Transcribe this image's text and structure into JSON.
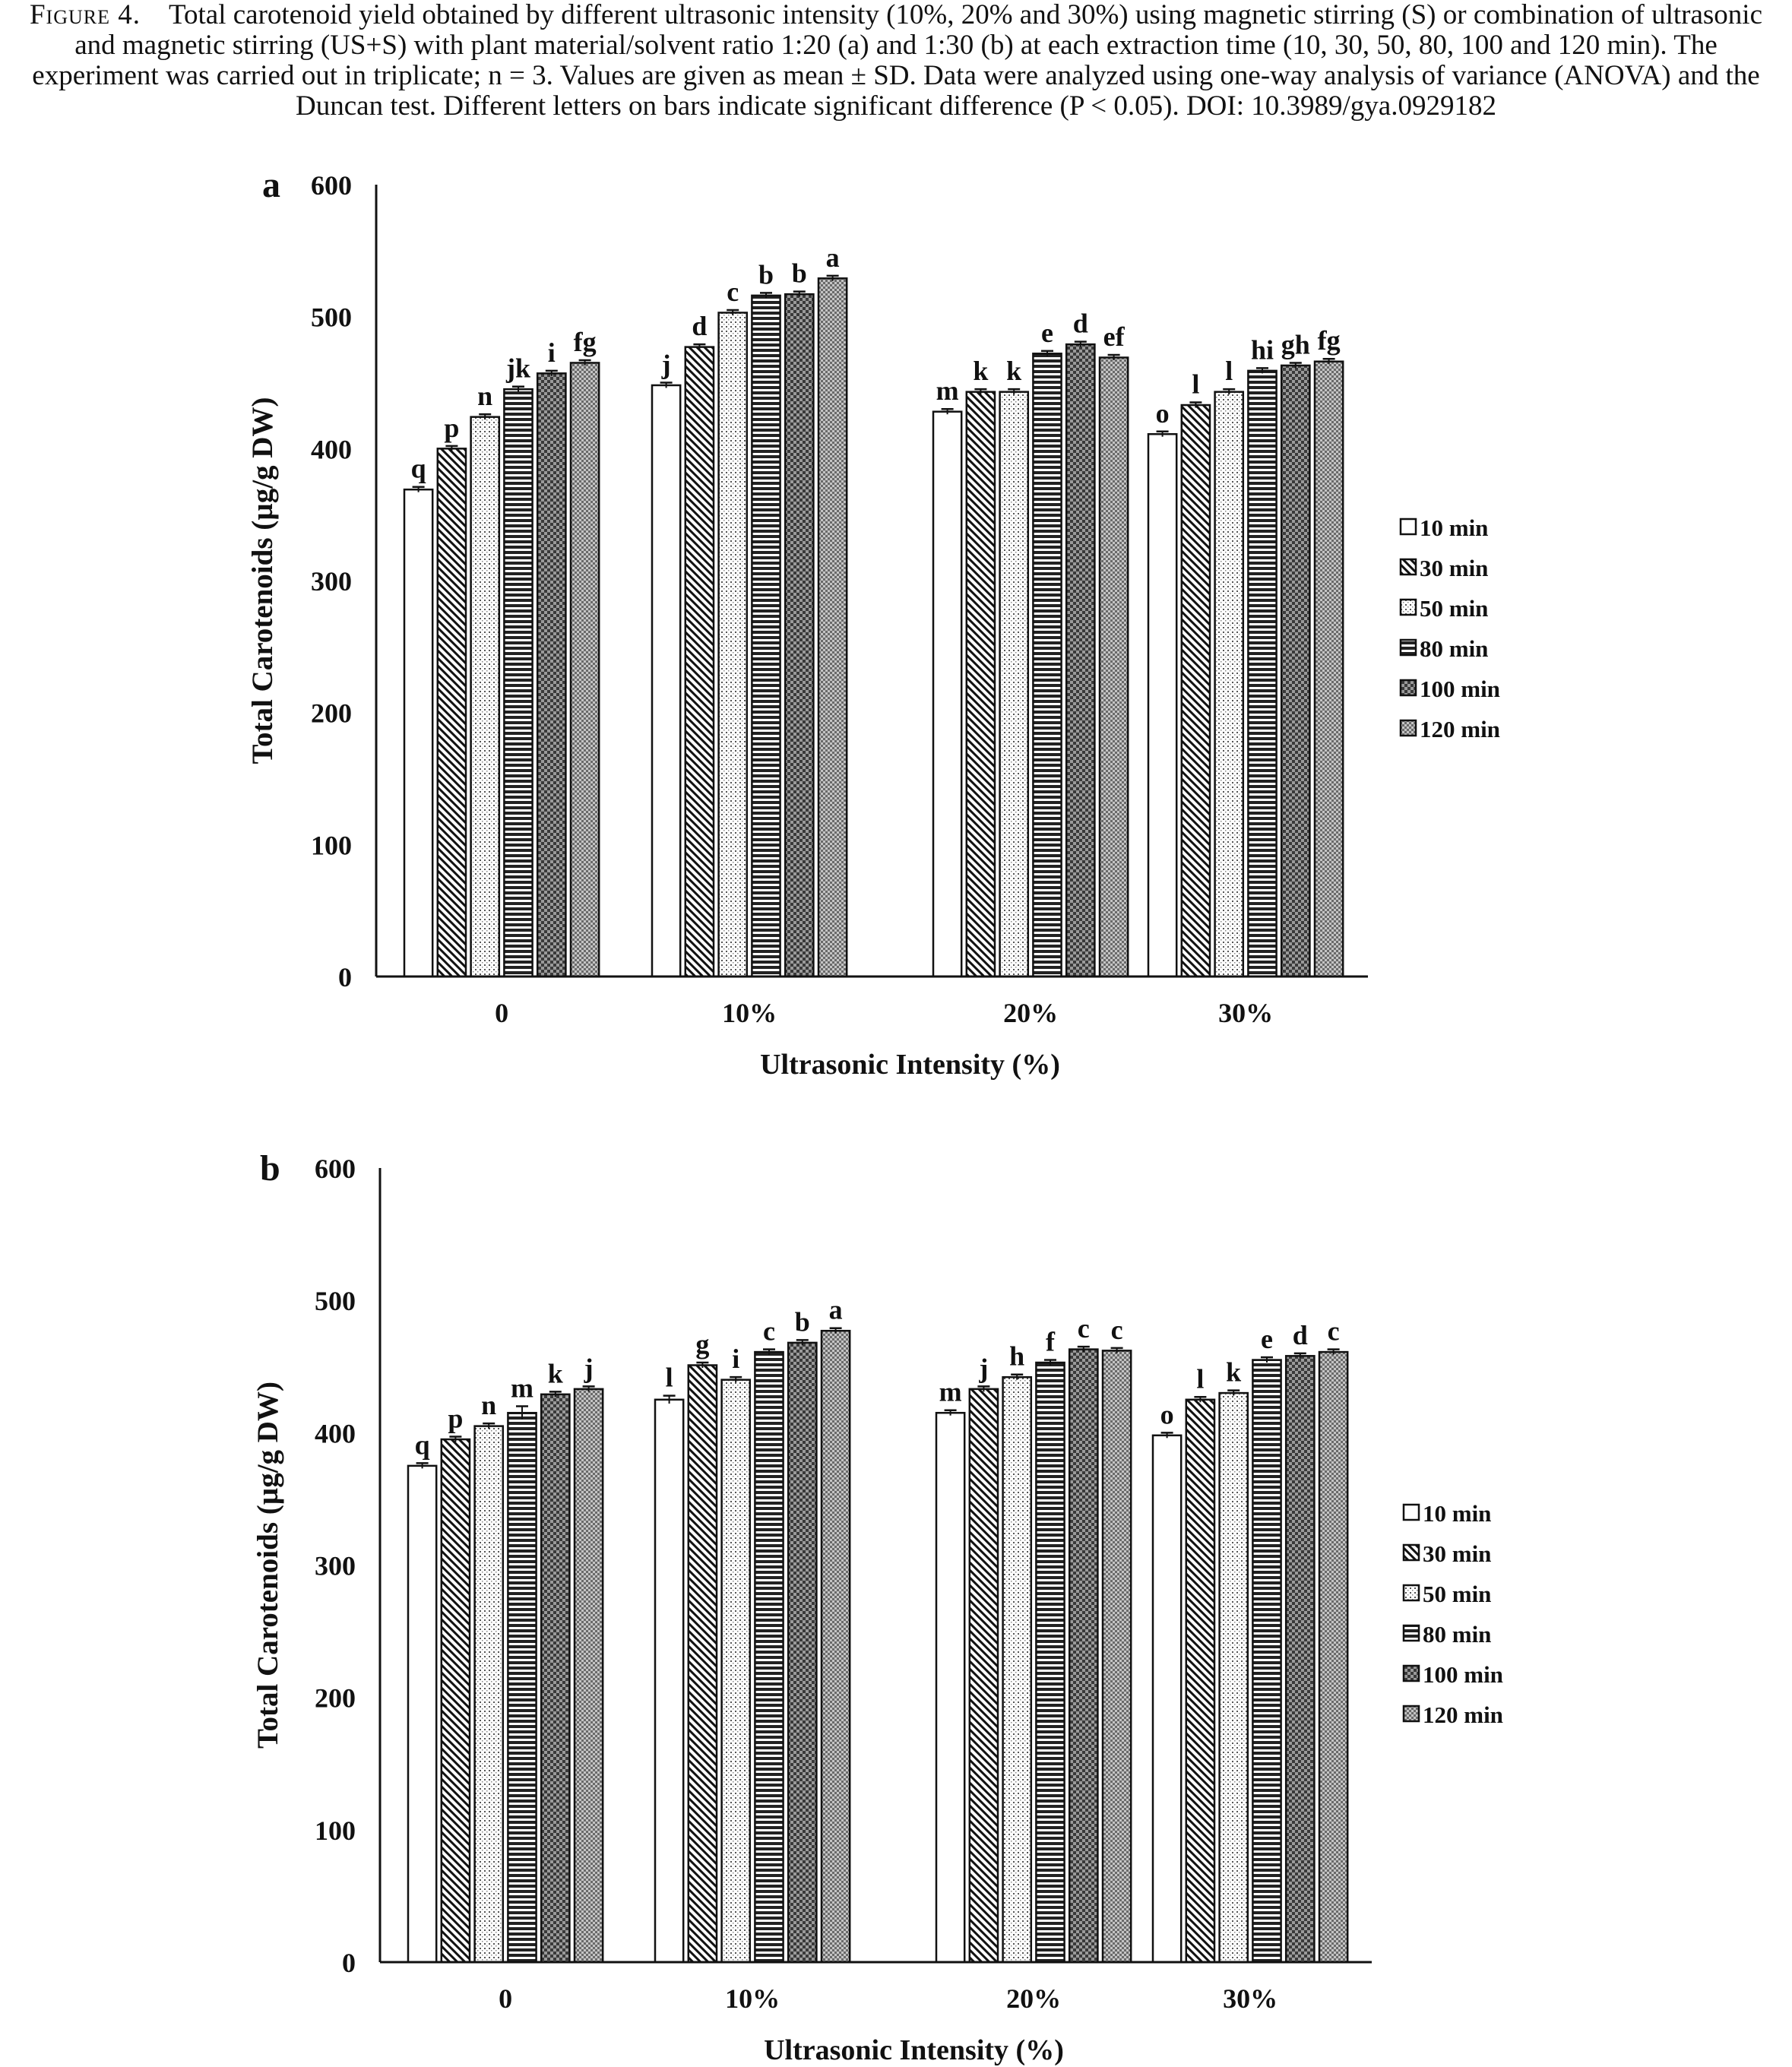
{
  "caption": {
    "label": "Figure 4.",
    "text": "Total carotenoid yield obtained by different ultrasonic intensity (10%, 20% and 30%) using magnetic stirring (S) or combination of ultrasonic and magnetic stirring (US+S) with plant material/solvent ratio 1:20 (a) and 1:30 (b) at each extraction time (10, 30, 50, 80, 100 and 120 min). The experiment was carried out in triplicate; n = 3. Values are given as mean ± SD. Data were analyzed using one-way analysis of variance (ANOVA) and the Duncan test. Different letters on bars indicate significant difference (P < 0.05). DOI: 10.3989/gya.0929182"
  },
  "chart_data": [
    {
      "type": "bar",
      "panel": "a",
      "categories": [
        "0",
        "10%",
        "20%",
        "30%"
      ],
      "xlabel": "Ultrasonic Intensity (%)",
      "ylabel": "Total Carotenoids (µg/g DW)",
      "ylim": [
        0,
        600
      ],
      "yticks": [
        "0",
        "100",
        "200",
        "300",
        "400",
        "500",
        "600"
      ],
      "grid": false,
      "legend_position": "right",
      "series": [
        {
          "name": "10 min",
          "values": [
            369,
            448,
            428,
            411
          ],
          "errors": [
            2,
            2,
            2,
            2
          ],
          "letters": [
            "q",
            "j",
            "m",
            "o"
          ]
        },
        {
          "name": "30 min",
          "values": [
            400,
            477,
            443,
            433
          ],
          "errors": [
            2,
            2,
            2,
            2
          ],
          "letters": [
            "p",
            "d",
            "k",
            "l"
          ]
        },
        {
          "name": "50 min",
          "values": [
            424,
            503,
            443,
            443
          ],
          "errors": [
            2,
            2,
            2,
            2
          ],
          "letters": [
            "n",
            "c",
            "k",
            "l"
          ]
        },
        {
          "name": "80 min",
          "values": [
            445,
            516,
            472,
            459
          ],
          "errors": [
            2,
            2,
            2,
            2
          ],
          "letters": [
            "jk",
            "b",
            "e",
            "hi"
          ]
        },
        {
          "name": "100 min",
          "values": [
            457,
            517,
            479,
            463
          ],
          "errors": [
            2,
            2,
            2,
            2
          ],
          "letters": [
            "i",
            "b",
            "d",
            "gh"
          ]
        },
        {
          "name": "120 min",
          "values": [
            465,
            529,
            469,
            466
          ],
          "errors": [
            2,
            2,
            2,
            2
          ],
          "letters": [
            "fg",
            "a",
            "ef",
            "fg"
          ]
        }
      ]
    },
    {
      "type": "bar",
      "panel": "b",
      "categories": [
        "0",
        "10%",
        "20%",
        "30%"
      ],
      "xlabel": "Ultrasonic Intensity (%)",
      "ylabel": "Total Carotenoids (µg/g DW)",
      "ylim": [
        0,
        600
      ],
      "yticks": [
        "0",
        "100",
        "200",
        "300",
        "400",
        "500",
        "600"
      ],
      "grid": false,
      "legend_position": "right",
      "series": [
        {
          "name": "10 min",
          "values": [
            375,
            425,
            415,
            398
          ],
          "errors": [
            2,
            3,
            2,
            2
          ],
          "letters": [
            "q",
            "l",
            "m",
            "o"
          ]
        },
        {
          "name": "30 min",
          "values": [
            395,
            451,
            433,
            425
          ],
          "errors": [
            2,
            2,
            2,
            2
          ],
          "letters": [
            "p",
            "g",
            "j",
            "l"
          ]
        },
        {
          "name": "50 min",
          "values": [
            405,
            440,
            442,
            430
          ],
          "errors": [
            2,
            2,
            2,
            2
          ],
          "letters": [
            "n",
            "i",
            "h",
            "k"
          ]
        },
        {
          "name": "80 min",
          "values": [
            415,
            461,
            453,
            455
          ],
          "errors": [
            5,
            2,
            2,
            2
          ],
          "letters": [
            "m",
            "c",
            "f",
            "e"
          ]
        },
        {
          "name": "100 min",
          "values": [
            429,
            468,
            463,
            458
          ],
          "errors": [
            2,
            2,
            2,
            2
          ],
          "letters": [
            "k",
            "b",
            "c",
            "d"
          ]
        },
        {
          "name": "120 min",
          "values": [
            433,
            477,
            462,
            461
          ],
          "errors": [
            2,
            2,
            2,
            2
          ],
          "letters": [
            "j",
            "a",
            "c",
            "c"
          ]
        }
      ]
    }
  ]
}
